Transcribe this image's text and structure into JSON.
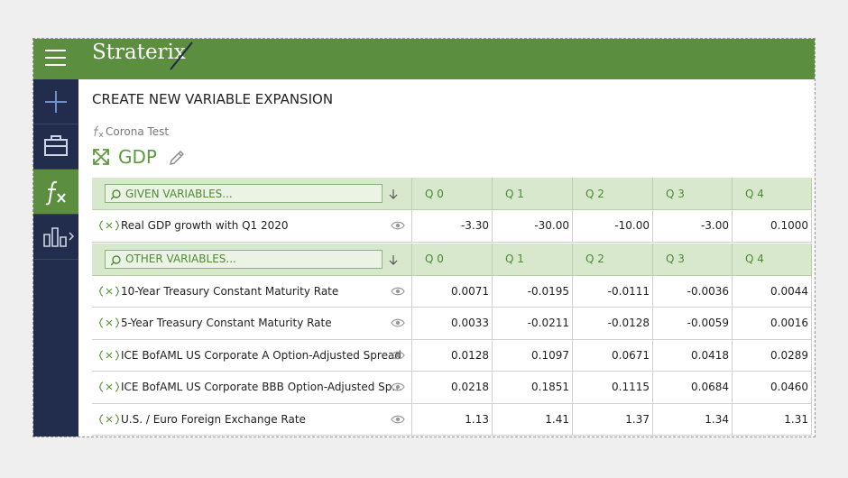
{
  "header": {
    "logo": "Straterix"
  },
  "page": {
    "title": "CREATE NEW VARIABLE EXPANSION",
    "model": "Corona Test",
    "variable": "GDP"
  },
  "tables": [
    {
      "search": "GIVEN VARIABLES...",
      "columns": [
        "Q 0",
        "Q 1",
        "Q 2",
        "Q 3",
        "Q 4"
      ],
      "rows": [
        {
          "label": "Real GDP growth with Q1 2020",
          "values": [
            "-3.30",
            "-30.00",
            "-10.00",
            "-3.00",
            "0.1000"
          ]
        }
      ]
    },
    {
      "search": "OTHER VARIABLES...",
      "columns": [
        "Q 0",
        "Q 1",
        "Q 2",
        "Q 3",
        "Q 4"
      ],
      "rows": [
        {
          "label": "10-Year Treasury Constant Maturity Rate",
          "values": [
            "0.0071",
            "-0.0195",
            "-0.0111",
            "-0.0036",
            "0.0044"
          ]
        },
        {
          "label": "5-Year Treasury Constant Maturity Rate",
          "values": [
            "0.0033",
            "-0.0211",
            "-0.0128",
            "-0.0059",
            "0.0016"
          ]
        },
        {
          "label": "ICE BofAML US Corporate A Option-Adjusted Spread",
          "values": [
            "0.0128",
            "0.1097",
            "0.0671",
            "0.0418",
            "0.0289"
          ]
        },
        {
          "label": "ICE BofAML US Corporate BBB Option-Adjusted Sp...",
          "values": [
            "0.0218",
            "0.1851",
            "0.1115",
            "0.0684",
            "0.0460"
          ]
        },
        {
          "label": "U.S. / Euro Foreign Exchange Rate",
          "values": [
            "1.13",
            "1.41",
            "1.37",
            "1.34",
            "1.31"
          ]
        }
      ]
    }
  ]
}
